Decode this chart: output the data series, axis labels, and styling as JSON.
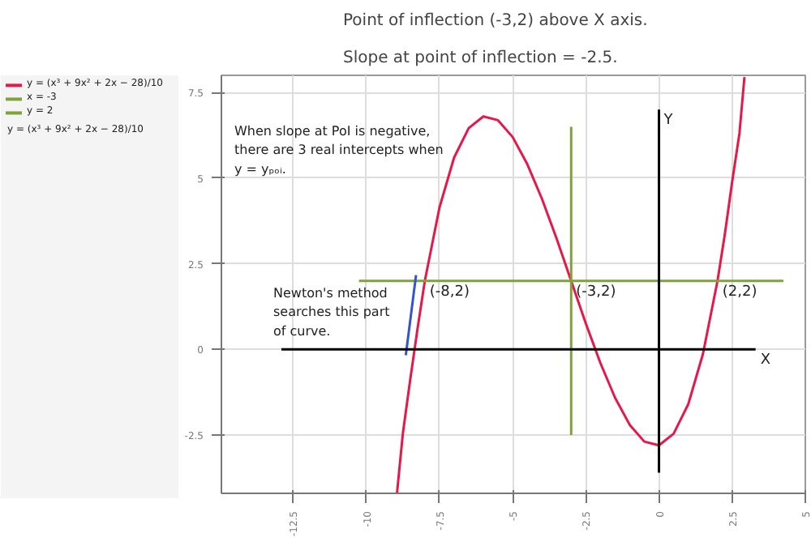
{
  "chart_data": {
    "type": "line",
    "title": "Point of inflection (-3,2) above X axis.",
    "subtitle": "Slope at point of inflection = -2.5.",
    "xlim": [
      -14.95,
      5
    ],
    "ylim": [
      -4.2,
      8
    ],
    "xticks": [
      -12.5,
      -10,
      -7.5,
      -5,
      -2.5,
      0,
      2.5,
      5
    ],
    "yticks": [
      -2.5,
      0,
      2.5,
      5,
      7.5
    ],
    "grid": true,
    "legend": "left",
    "marker": "none",
    "line_style": "solid",
    "series": [
      {
        "name": "y = (x³ + 9x² + 2x − 28)/10",
        "color": "#e8174a",
        "x": [
          -8.95,
          -8.75,
          -8.5,
          -8.25,
          -8,
          -7.5,
          -7,
          -6.5,
          -6,
          -5.5,
          -5,
          -4.5,
          -4,
          -3.5,
          -3,
          -2.5,
          -2,
          -1.5,
          -1,
          -0.5,
          0,
          0.5,
          1,
          1.5,
          2,
          2.25,
          2.5,
          2.75,
          2.92
        ],
        "values": [
          -4.19,
          -2.45,
          -0.89,
          0.6,
          2,
          4.14,
          5.6,
          6.46,
          6.8,
          6.69,
          6.2,
          5.41,
          4.4,
          3.24,
          2,
          0.76,
          -0.4,
          -1.41,
          -2.2,
          -2.69,
          -2.8,
          -2.46,
          -1.6,
          -0.14,
          2,
          3.36,
          4.89,
          6.31,
          7.95
        ]
      },
      {
        "name": "x = -3",
        "color": "#7fa23a",
        "x": [
          -3,
          -3
        ],
        "values": [
          -2.5,
          6.5
        ]
      },
      {
        "name": "y = 2",
        "color": "#7fa23a",
        "x": [
          -10.25,
          4.25
        ],
        "values": [
          2,
          2
        ]
      },
      {
        "color": "#3355cc",
        "x": [
          -8.65,
          -8.3
        ],
        "values": [
          -0.17,
          2.17
        ]
      },
      {
        "color": "#000000",
        "x": [
          -12.9,
          3.3
        ],
        "values": [
          0,
          0
        ]
      },
      {
        "color": "#000000",
        "x": [
          0,
          0
        ],
        "values": [
          -3.6,
          7.0
        ]
      }
    ],
    "annotations": [
      {
        "text": "(-8,2)",
        "x": -8,
        "y": 2
      },
      {
        "text": "(-3,2)",
        "x": -3,
        "y": 2
      },
      {
        "text": "(2,2)",
        "x": 2,
        "y": 2
      },
      {
        "text": "X",
        "x": 3.3,
        "y": 0
      },
      {
        "text": "Y",
        "x": 0,
        "y": 7.0
      },
      "y = (x³ + 9x² + 2x − 28)/10",
      "When slope at PoI is negative, there are 3 real intercepts when y = yₚₒᵢ.",
      "Newton's method searches this part of curve."
    ]
  }
}
